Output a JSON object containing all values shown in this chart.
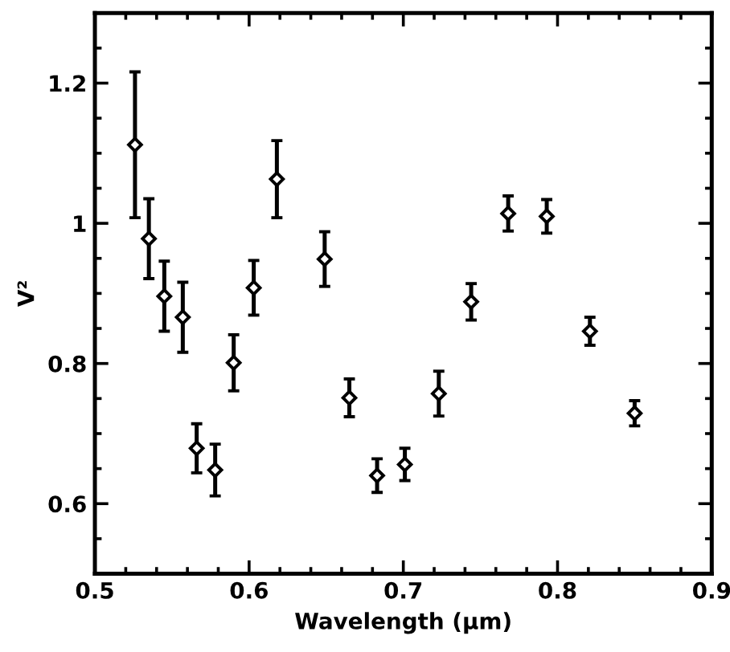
{
  "chart_data": {
    "type": "scatter",
    "xlabel": "Wavelength (μm)",
    "ylabel": "V²",
    "x": [
      0.526,
      0.535,
      0.545,
      0.557,
      0.566,
      0.578,
      0.59,
      0.603,
      0.618,
      0.649,
      0.665,
      0.683,
      0.701,
      0.723,
      0.744,
      0.768,
      0.793,
      0.821,
      0.85
    ],
    "values": [
      1.112,
      0.978,
      0.896,
      0.866,
      0.679,
      0.648,
      0.801,
      0.908,
      1.063,
      0.949,
      0.751,
      0.64,
      0.656,
      0.757,
      0.888,
      1.014,
      1.01,
      0.846,
      0.729
    ],
    "errors": [
      0.104,
      0.057,
      0.05,
      0.05,
      0.035,
      0.037,
      0.04,
      0.039,
      0.055,
      0.039,
      0.027,
      0.024,
      0.023,
      0.032,
      0.026,
      0.025,
      0.024,
      0.02,
      0.018
    ],
    "color": "#000000",
    "marker": "diamond",
    "xlim": [
      0.5,
      0.9
    ],
    "xticks": [
      0.5,
      0.6,
      0.7,
      0.8,
      0.9
    ],
    "ylim": [
      0.5,
      1.3
    ],
    "yticks": [
      {
        "value": 0.6,
        "label": "0.6"
      },
      {
        "value": 0.8,
        "label": "0.8"
      },
      {
        "value": 1.0,
        "label": "1"
      },
      {
        "value": 1.2,
        "label": "1.2"
      }
    ],
    "grid": false
  }
}
